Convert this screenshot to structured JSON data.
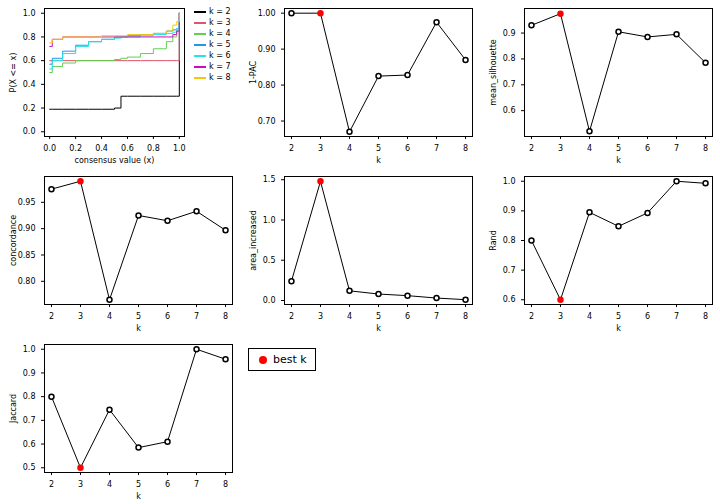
{
  "chart_data": [
    {
      "type": "line",
      "x_label": "consensus value (x)",
      "y_label": "P(X <= x)",
      "legend": "right",
      "x": [
        0,
        0.02,
        0.1,
        0.2,
        0.3,
        0.4,
        0.5,
        0.55,
        0.6,
        0.7,
        0.8,
        0.9,
        0.95,
        0.98,
        1
      ],
      "xlim": [
        -0.04,
        1.04
      ],
      "xticks": [
        {
          "value": 0,
          "label": "0.0"
        },
        {
          "value": 0.2,
          "label": "0.2"
        },
        {
          "value": 0.4,
          "label": "0.4"
        },
        {
          "value": 0.6,
          "label": "0.6"
        },
        {
          "value": 0.8,
          "label": "0.8"
        },
        {
          "value": 1,
          "label": "1.0"
        }
      ],
      "ylim": [
        -0.04,
        1.04
      ],
      "yticks": [
        {
          "value": 0,
          "label": "0.0"
        },
        {
          "value": 0.2,
          "label": "0.2"
        },
        {
          "value": 0.4,
          "label": "0.4"
        },
        {
          "value": 0.6,
          "label": "0.6"
        },
        {
          "value": 0.8,
          "label": "0.8"
        },
        {
          "value": 1,
          "label": "1.0"
        }
      ],
      "line_style": "step",
      "series": [
        {
          "name": "k = 2",
          "color": "#000000",
          "values": [
            0.19,
            0.19,
            0.19,
            0.19,
            0.19,
            0.19,
            0.2,
            0.3,
            0.3,
            0.3,
            0.3,
            0.3,
            0.3,
            0.3,
            1.0
          ]
        },
        {
          "name": "k = 3",
          "color": "#DF536B",
          "values": [
            0.6,
            0.6,
            0.6,
            0.6,
            0.6,
            0.6,
            0.6,
            0.6,
            0.6,
            0.6,
            0.6,
            0.6,
            0.6,
            0.6,
            1.0
          ]
        },
        {
          "name": "k = 4",
          "color": "#61D04F",
          "values": [
            0.5,
            0.55,
            0.58,
            0.6,
            0.6,
            0.6,
            0.61,
            0.62,
            0.63,
            0.66,
            0.7,
            0.76,
            0.8,
            0.85,
            1.0
          ]
        },
        {
          "name": "k = 5",
          "color": "#2297E6",
          "values": [
            0.57,
            0.62,
            0.68,
            0.73,
            0.76,
            0.78,
            0.8,
            0.8,
            0.81,
            0.82,
            0.83,
            0.85,
            0.86,
            0.87,
            1.0
          ]
        },
        {
          "name": "k = 6",
          "color": "#28E2E5",
          "values": [
            0.53,
            0.6,
            0.66,
            0.72,
            0.76,
            0.78,
            0.79,
            0.8,
            0.8,
            0.81,
            0.82,
            0.83,
            0.84,
            0.87,
            1.0
          ]
        },
        {
          "name": "k = 7",
          "color": "#CD0BBC",
          "values": [
            0.72,
            0.78,
            0.8,
            0.8,
            0.8,
            0.8,
            0.8,
            0.8,
            0.8,
            0.8,
            0.8,
            0.8,
            0.82,
            0.85,
            1.0
          ]
        },
        {
          "name": "k = 8",
          "color": "#F5C710",
          "values": [
            0.75,
            0.78,
            0.8,
            0.8,
            0.8,
            0.81,
            0.81,
            0.81,
            0.82,
            0.82,
            0.83,
            0.85,
            0.9,
            0.93,
            1.0
          ]
        }
      ]
    },
    {
      "type": "line",
      "x_label": "k",
      "y_label": "1-PAC",
      "marker": "circle",
      "color": "#000000",
      "x": [
        2,
        3,
        4,
        5,
        6,
        7,
        8
      ],
      "xlim": [
        1.76,
        8.24
      ],
      "xticks": [
        2,
        3,
        4,
        5,
        6,
        7,
        8
      ],
      "values": [
        1.0,
        1.0,
        0.67,
        0.825,
        0.828,
        0.975,
        0.87
      ],
      "colors": [
        "#000000",
        "#FF0000",
        "#000000",
        "#000000",
        "#000000",
        "#000000",
        "#000000"
      ],
      "ylim": [
        0.657,
        1.013
      ],
      "yticks": [
        {
          "value": 0.7,
          "label": "0.70"
        },
        {
          "value": 0.8,
          "label": "0.80"
        },
        {
          "value": 0.9,
          "label": "0.90"
        },
        {
          "value": 1,
          "label": "1.00"
        }
      ]
    },
    {
      "type": "line",
      "x_label": "k",
      "y_label": "mean_silhouette",
      "marker": "circle",
      "color": "#000000",
      "x": [
        2,
        3,
        4,
        5,
        6,
        7,
        8
      ],
      "xlim": [
        1.76,
        8.24
      ],
      "xticks": [
        2,
        3,
        4,
        5,
        6,
        7,
        8
      ],
      "values": [
        0.93,
        0.975,
        0.52,
        0.905,
        0.885,
        0.895,
        0.785
      ],
      "colors": [
        "#000000",
        "#FF0000",
        "#000000",
        "#000000",
        "#000000",
        "#000000",
        "#000000"
      ],
      "ylim": [
        0.5,
        0.995
      ],
      "yticks": [
        0.6,
        0.7,
        0.8,
        0.9
      ]
    },
    {
      "type": "line",
      "x_label": "k",
      "y_label": "concordance",
      "marker": "circle",
      "color": "#000000",
      "x": [
        2,
        3,
        4,
        5,
        6,
        7,
        8
      ],
      "xlim": [
        1.76,
        8.24
      ],
      "xticks": [
        2,
        3,
        4,
        5,
        6,
        7,
        8
      ],
      "values": [
        0.975,
        0.99,
        0.765,
        0.925,
        0.915,
        0.933,
        0.897
      ],
      "colors": [
        "#000000",
        "#FF0000",
        "#000000",
        "#000000",
        "#000000",
        "#000000",
        "#000000"
      ],
      "ylim": [
        0.756,
        0.999
      ],
      "yticks": [
        {
          "value": 0.8,
          "label": "0.80"
        },
        0.85,
        {
          "value": 0.9,
          "label": "0.90"
        },
        0.95
      ]
    },
    {
      "type": "line",
      "x_label": "k",
      "y_label": "area_increased",
      "marker": "circle",
      "color": "#000000",
      "x": [
        2,
        3,
        4,
        5,
        6,
        7,
        8
      ],
      "xlim": [
        1.76,
        8.24
      ],
      "xticks": [
        2,
        3,
        4,
        5,
        6,
        7,
        8
      ],
      "values": [
        0.24,
        1.48,
        0.12,
        0.08,
        0.06,
        0.03,
        0.01
      ],
      "colors": [
        "#000000",
        "#FF0000",
        "#000000",
        "#000000",
        "#000000",
        "#000000",
        "#000000"
      ],
      "ylim": [
        -0.05,
        1.54
      ],
      "yticks": [
        {
          "value": 0,
          "label": "0.0"
        },
        0.5,
        {
          "value": 1,
          "label": "1.0"
        },
        1.5
      ]
    },
    {
      "type": "line",
      "x_label": "k",
      "y_label": "Rand",
      "marker": "circle",
      "color": "#000000",
      "x": [
        2,
        3,
        4,
        5,
        6,
        7,
        8
      ],
      "xlim": [
        1.76,
        8.24
      ],
      "xticks": [
        2,
        3,
        4,
        5,
        6,
        7,
        8
      ],
      "values": [
        0.8,
        0.6,
        0.895,
        0.848,
        0.893,
        1.0,
        0.993
      ],
      "colors": [
        "#000000",
        "#FF0000",
        "#000000",
        "#000000",
        "#000000",
        "#000000",
        "#000000"
      ],
      "ylim": [
        0.584,
        1.016
      ],
      "yticks": [
        0.6,
        0.7,
        0.8,
        0.9,
        {
          "value": 1,
          "label": "1.0"
        }
      ]
    },
    {
      "type": "line",
      "x_label": "k",
      "y_label": "Jaccard",
      "marker": "circle",
      "color": "#000000",
      "x": [
        2,
        3,
        4,
        5,
        6,
        7,
        8
      ],
      "xlim": [
        1.76,
        8.24
      ],
      "xticks": [
        2,
        3,
        4,
        5,
        6,
        7,
        8
      ],
      "values": [
        0.8,
        0.5,
        0.745,
        0.585,
        0.61,
        1.0,
        0.958
      ],
      "colors": [
        "#000000",
        "#FF0000",
        "#000000",
        "#000000",
        "#000000",
        "#000000",
        "#000000"
      ],
      "ylim": [
        0.48,
        1.02
      ],
      "yticks": [
        0.5,
        0.6,
        0.7,
        0.8,
        0.9,
        {
          "value": 1,
          "label": "1.0"
        }
      ]
    },
    {
      "type": "legend",
      "series": [
        {
          "name": "best k",
          "color": "#FF0000",
          "marker": "circle"
        }
      ]
    }
  ]
}
